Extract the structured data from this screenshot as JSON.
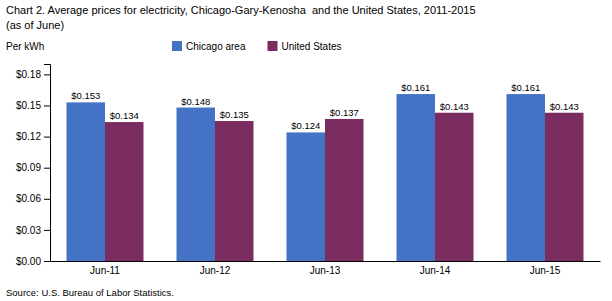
{
  "chart_data": {
    "type": "bar",
    "title": "Chart 2. Average prices for electricity, Chicago-Gary-Kenosha  and the United States, 2011-2015",
    "subtitle": "(as of June)",
    "ylabel": "Per kWh",
    "source": "Source: U.S. Bureau of Labor Statistics.",
    "categories": [
      "Jun-11",
      "Jun-12",
      "Jun-13",
      "Jun-14",
      "Jun-15"
    ],
    "series": [
      {
        "name": "Chicago area",
        "color": "#4472C4",
        "values": [
          0.153,
          0.148,
          0.124,
          0.161,
          0.161
        ],
        "value_labels": [
          "$0.153",
          "$0.148",
          "$0.124",
          "$0.161",
          "$0.161"
        ]
      },
      {
        "name": "United States",
        "color": "#7B2C5E",
        "values": [
          0.134,
          0.135,
          0.137,
          0.143,
          0.143
        ],
        "value_labels": [
          "$0.134",
          "$0.135",
          "$0.137",
          "$0.143",
          "$0.143"
        ]
      }
    ],
    "ylim": [
      0,
      0.19
    ],
    "yticks": [
      {
        "value": 0.0,
        "label": "$0.00"
      },
      {
        "value": 0.03,
        "label": "$0.03"
      },
      {
        "value": 0.06,
        "label": "$0.06"
      },
      {
        "value": 0.09,
        "label": "$0.09"
      },
      {
        "value": 0.12,
        "label": "$0.12"
      },
      {
        "value": 0.15,
        "label": "$0.15"
      },
      {
        "value": 0.18,
        "label": "$0.18"
      }
    ],
    "data_labels": true,
    "legend": "top",
    "grid": false
  }
}
